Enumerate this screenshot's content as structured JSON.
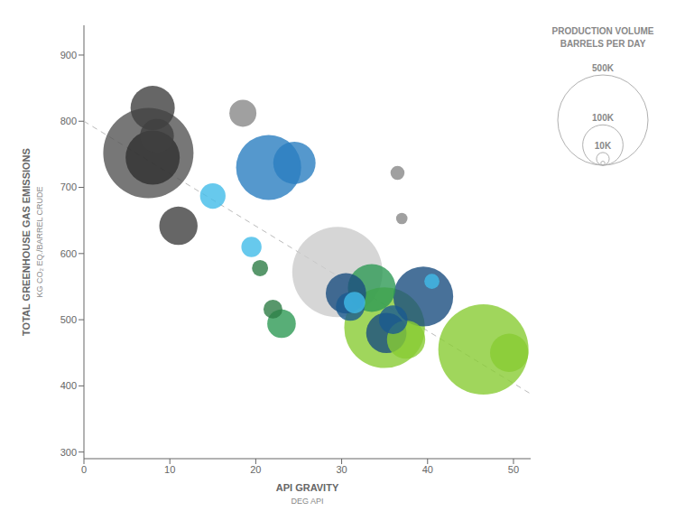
{
  "chart_data": {
    "type": "scatter",
    "xlabel": "API GRAVITY",
    "xlabel_sub": "DEG API",
    "ylabel": "TOTAL GREENHOUSE GAS EMISSIONS",
    "ylabel_sub": "KG CO₂ EQ./BARREL CRUDE",
    "xlim": [
      0,
      52
    ],
    "ylim": [
      290,
      945
    ],
    "xticks": [
      0,
      10,
      20,
      30,
      40,
      50
    ],
    "yticks": [
      300,
      400,
      500,
      600,
      700,
      800,
      900
    ],
    "grid": false,
    "x": [
      7.5,
      8.0,
      8.5,
      8.0,
      11.0,
      15.0,
      18.5,
      19.5,
      21.5,
      24.5,
      20.5,
      22.0,
      23.0,
      29.5,
      30.5,
      31.0,
      31.5,
      33.5,
      35.0,
      35.2,
      36.0,
      36.5,
      37.0,
      37.5,
      39.5,
      40.5,
      46.5,
      49.5
    ],
    "values": [
      752,
      820,
      778,
      745,
      642,
      687,
      812,
      610,
      730,
      737,
      578,
      516,
      494,
      572,
      540,
      520,
      526,
      548,
      488,
      480,
      500,
      722,
      653,
      470,
      535,
      558,
      455,
      450
    ],
    "sizes": [
      500000,
      120000,
      70000,
      180000,
      90000,
      40000,
      45000,
      25000,
      260000,
      110000,
      16000,
      22000,
      50000,
      500000,
      100000,
      50000,
      28000,
      140000,
      400000,
      100000,
      50000,
      12000,
      8000,
      90000,
      220000,
      14000,
      500000,
      90000
    ],
    "colors": [
      "#555555",
      "#404040",
      "#404040",
      "#303030",
      "#404040",
      "#41bce8",
      "#888888",
      "#41bce8",
      "#2b7ec0",
      "#2b7ec0",
      "#2e7d46",
      "#2e7d46",
      "#2e9a55",
      "#cccccc",
      "#1a4e80",
      "#1a5a90",
      "#41bce8",
      "#2e9a55",
      "#88cc33",
      "#1a4e80",
      "#1a5a90",
      "#888888",
      "#888888",
      "#88cc33",
      "#1a4e80",
      "#41bce8",
      "#88cc33",
      "#88cc33"
    ],
    "trend": {
      "x": [
        0,
        52
      ],
      "values": [
        800,
        388
      ],
      "color": "#bbbbbb",
      "line_style": "dashed"
    },
    "size_legend": {
      "title": "PRODUCTION VOLUME\nBARRELS PER DAY",
      "sizes": [
        500000,
        100000,
        10000,
        1000
      ],
      "labels": [
        "500K",
        "100K",
        "10K",
        null
      ]
    }
  }
}
